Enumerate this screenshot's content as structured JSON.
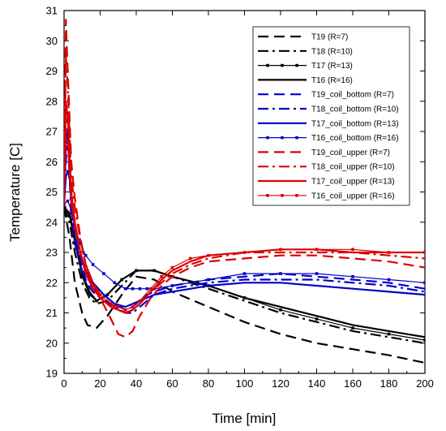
{
  "chart_data": {
    "type": "line",
    "title": "",
    "xlabel": "Time [min]",
    "ylabel": "Temperature [C]",
    "xlim": [
      0,
      200
    ],
    "ylim": [
      19,
      31
    ],
    "xticks": [
      0,
      20,
      40,
      60,
      80,
      100,
      120,
      140,
      160,
      180,
      200
    ],
    "yticks": [
      19,
      20,
      21,
      22,
      23,
      24,
      25,
      26,
      27,
      28,
      29,
      30,
      31
    ],
    "grid": false,
    "legend_position": "top-right",
    "series": [
      {
        "name": "T19 (R=7)",
        "color": "#000000",
        "dash": "long",
        "marker": "none",
        "x": [
          0,
          3,
          6,
          10,
          13,
          18,
          24,
          32,
          40,
          50,
          60,
          80,
          100,
          120,
          140,
          160,
          180,
          200
        ],
        "y": [
          24.5,
          23.5,
          22.0,
          21.0,
          20.6,
          20.5,
          20.9,
          21.6,
          22.2,
          22.1,
          21.7,
          21.2,
          20.7,
          20.3,
          20.0,
          19.8,
          19.6,
          19.35
        ]
      },
      {
        "name": "T18 (R=10)",
        "color": "#000000",
        "dash": "dashdot",
        "marker": "none",
        "x": [
          0,
          3,
          6,
          10,
          14,
          18,
          24,
          32,
          40,
          50,
          60,
          80,
          100,
          120,
          140,
          160,
          180,
          200
        ],
        "y": [
          24.5,
          24.0,
          23.0,
          22.0,
          21.5,
          21.3,
          21.4,
          21.9,
          22.4,
          22.4,
          22.2,
          21.8,
          21.4,
          21.0,
          20.7,
          20.4,
          20.2,
          20.0
        ]
      },
      {
        "name": "T17 (R=13)",
        "color": "#000000",
        "dash": "solid",
        "marker": "square",
        "x": [
          0,
          3,
          6,
          10,
          14,
          18,
          24,
          32,
          40,
          50,
          60,
          80,
          100,
          120,
          140,
          160,
          180,
          200
        ],
        "y": [
          24.5,
          24.2,
          23.3,
          22.2,
          21.6,
          21.4,
          21.6,
          22.1,
          22.4,
          22.4,
          22.2,
          21.9,
          21.5,
          21.1,
          20.8,
          20.5,
          20.3,
          20.1
        ]
      },
      {
        "name": "T16 (R=16)",
        "color": "#000000",
        "dash": "solid",
        "marker": "none",
        "x": [
          0,
          3,
          6,
          10,
          14,
          18,
          24,
          32,
          40,
          50,
          60,
          80,
          100,
          120,
          140,
          160,
          180,
          200
        ],
        "y": [
          24.5,
          24.3,
          23.5,
          22.3,
          21.7,
          21.4,
          21.6,
          22.1,
          22.4,
          22.4,
          22.2,
          21.9,
          21.5,
          21.2,
          20.9,
          20.6,
          20.4,
          20.2
        ]
      },
      {
        "name": "T19_coil_bottom (R=7)",
        "color": "#0000cc",
        "dash": "long",
        "marker": "none",
        "x": [
          0,
          1,
          2,
          3,
          4,
          6,
          9,
          12,
          16,
          22,
          28,
          34,
          38,
          42,
          46,
          50,
          60,
          80,
          100,
          120,
          140,
          160,
          180,
          200
        ],
        "y": [
          24.6,
          26.5,
          27.5,
          26.0,
          24.5,
          23.5,
          22.8,
          22.1,
          21.8,
          21.6,
          21.3,
          21.1,
          21.2,
          21.4,
          21.6,
          21.7,
          21.9,
          22.1,
          22.2,
          22.3,
          22.2,
          22.1,
          22.0,
          21.8
        ]
      },
      {
        "name": "T18_coil_bottom (R=10)",
        "color": "#0000cc",
        "dash": "dashdot",
        "marker": "none",
        "x": [
          0,
          1,
          2,
          3,
          4,
          6,
          9,
          12,
          16,
          22,
          28,
          34,
          38,
          42,
          46,
          50,
          60,
          80,
          100,
          120,
          140,
          160,
          180,
          200
        ],
        "y": [
          24.5,
          26.0,
          27.0,
          25.5,
          24.3,
          23.3,
          22.6,
          22.0,
          21.7,
          21.4,
          21.2,
          21.0,
          21.0,
          21.2,
          21.4,
          21.6,
          21.8,
          22.0,
          22.1,
          22.1,
          22.1,
          22.0,
          21.9,
          21.7
        ]
      },
      {
        "name": "T17_coil_bottom (R=13)",
        "color": "#0000cc",
        "dash": "solid",
        "marker": "none",
        "x": [
          0,
          1,
          2,
          3,
          4,
          6,
          9,
          12,
          16,
          22,
          28,
          34,
          38,
          42,
          46,
          50,
          60,
          80,
          100,
          120,
          140,
          160,
          180,
          200
        ],
        "y": [
          24.6,
          25.5,
          25.7,
          25.5,
          24.8,
          23.8,
          23.0,
          22.4,
          22.0,
          21.6,
          21.3,
          21.2,
          21.3,
          21.4,
          21.5,
          21.6,
          21.7,
          21.9,
          22.0,
          22.0,
          21.9,
          21.8,
          21.7,
          21.6
        ]
      },
      {
        "name": "T16_coil_bottom (R=16)",
        "color": "#0000cc",
        "dash": "solid",
        "marker": "square",
        "x": [
          0,
          2,
          4,
          6,
          9,
          12,
          16,
          22,
          28,
          34,
          38,
          42,
          46,
          50,
          60,
          80,
          100,
          120,
          140,
          160,
          180,
          200
        ],
        "y": [
          24.6,
          24.7,
          24.4,
          23.8,
          23.3,
          22.9,
          22.6,
          22.3,
          22.0,
          21.8,
          21.8,
          21.8,
          21.8,
          21.8,
          21.9,
          22.1,
          22.3,
          22.3,
          22.3,
          22.2,
          22.1,
          22.0
        ]
      },
      {
        "name": "T19_coil_upper (R=7)",
        "color": "#dd0000",
        "dash": "long",
        "marker": "none",
        "x": [
          0,
          1,
          2,
          3,
          4,
          6,
          9,
          12,
          16,
          20,
          26,
          30,
          34,
          38,
          42,
          48,
          54,
          60,
          70,
          80,
          100,
          120,
          140,
          160,
          180,
          200
        ],
        "y": [
          24.6,
          30.7,
          29.0,
          27.5,
          26.0,
          24.8,
          23.5,
          22.6,
          22.0,
          21.5,
          20.8,
          20.3,
          20.2,
          20.4,
          20.9,
          21.5,
          21.9,
          22.2,
          22.5,
          22.7,
          22.8,
          22.9,
          22.9,
          22.8,
          22.7,
          22.5
        ]
      },
      {
        "name": "T18_coil_upper (R=10)",
        "color": "#dd0000",
        "dash": "dashdot",
        "marker": "none",
        "x": [
          0,
          1,
          2,
          3,
          4,
          6,
          9,
          12,
          16,
          20,
          26,
          30,
          34,
          38,
          42,
          48,
          54,
          60,
          70,
          80,
          100,
          120,
          140,
          160,
          180,
          200
        ],
        "y": [
          24.6,
          29.5,
          28.5,
          27.0,
          25.5,
          24.5,
          23.4,
          22.6,
          22.0,
          21.6,
          21.3,
          21.1,
          21.0,
          21.1,
          21.3,
          21.7,
          22.0,
          22.3,
          22.6,
          22.8,
          23.0,
          23.0,
          23.0,
          23.0,
          22.9,
          22.8
        ]
      },
      {
        "name": "T17_coil_upper (R=13)",
        "color": "#dd0000",
        "dash": "solid",
        "marker": "none",
        "x": [
          0,
          1,
          2,
          3,
          4,
          6,
          9,
          12,
          16,
          20,
          26,
          30,
          34,
          38,
          42,
          48,
          54,
          60,
          70,
          80,
          100,
          120,
          140,
          160,
          180,
          200
        ],
        "y": [
          24.6,
          28.0,
          27.5,
          26.3,
          25.0,
          24.0,
          23.0,
          22.3,
          21.8,
          21.5,
          21.2,
          21.1,
          21.0,
          21.1,
          21.3,
          21.7,
          22.1,
          22.4,
          22.7,
          22.9,
          23.0,
          23.1,
          23.1,
          23.0,
          23.0,
          23.0
        ]
      },
      {
        "name": "T16_coil_upper (R=16)",
        "color": "#dd0000",
        "dash": "solid",
        "marker": "square",
        "x": [
          0,
          1,
          2,
          3,
          4,
          6,
          9,
          12,
          16,
          20,
          26,
          30,
          34,
          38,
          42,
          48,
          54,
          60,
          70,
          80,
          100,
          120,
          140,
          160,
          180,
          200
        ],
        "y": [
          24.6,
          27.0,
          26.5,
          25.5,
          24.6,
          23.8,
          23.0,
          22.4,
          21.9,
          21.6,
          21.3,
          21.2,
          21.1,
          21.2,
          21.4,
          21.8,
          22.2,
          22.5,
          22.8,
          22.9,
          23.0,
          23.1,
          23.1,
          23.1,
          23.0,
          23.0
        ]
      }
    ]
  }
}
